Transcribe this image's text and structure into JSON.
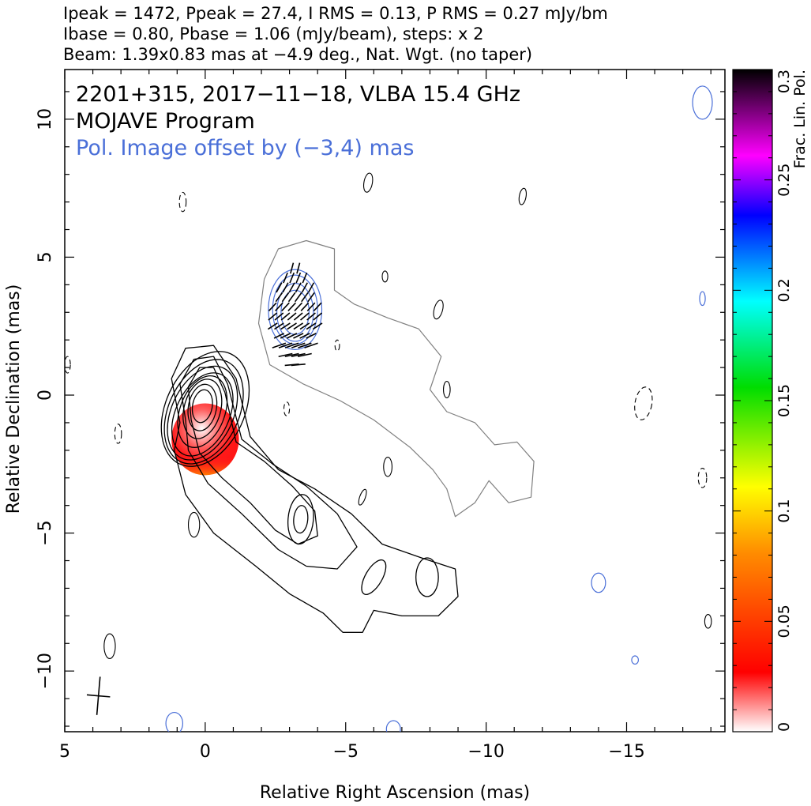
{
  "header": {
    "line1": "Ipeak = 1472, Ppeak = 27.4, I RMS = 0.13, P RMS = 0.27 mJy/bm",
    "line2": "Ibase = 0.80, Pbase = 1.06 (mJy/beam), steps: x 2",
    "line3": "Beam: 1.39x0.83 mas at −4.9 deg., Nat. Wgt. (no taper)"
  },
  "plot_text": {
    "source_line": "2201+315, 2017−11−18, VLBA 15.4 GHz",
    "program_line": "MOJAVE Program",
    "offset_note": "Pol. Image offset by (−3,4) mas"
  },
  "colors": {
    "total_intensity_contour": "#000000",
    "polarization_contour": "#4a6fd8",
    "offset_contour": "#808080",
    "evpa_vector": "#000000"
  },
  "chart_data": {
    "type": "contour_map",
    "xlabel": "Relative Right Ascension (mas)",
    "ylabel": "Relative Declination (mas)",
    "xlim": [
      5,
      -18.5
    ],
    "ylim": [
      -12.2,
      11.8
    ],
    "x_ticks": [
      5,
      0,
      -5,
      -10,
      -15
    ],
    "x_tick_labels": [
      "5",
      "0",
      "−5",
      "−10",
      "−15"
    ],
    "y_ticks": [
      10,
      5,
      0,
      -5,
      -10
    ],
    "y_tick_labels": [
      "10",
      "5",
      "0",
      "−5",
      "−10"
    ],
    "colorbar": {
      "label": "Frac. Lin. Pol.",
      "range": [
        0,
        0.3
      ],
      "ticks": [
        0,
        0.05,
        0.1,
        0.15,
        0.2,
        0.25,
        0.3
      ],
      "tick_labels": [
        "0",
        "0.05",
        "0.1",
        "0.15",
        "0.2",
        "0.25",
        "0.3"
      ],
      "gradient": [
        "#ffffff",
        "#ff0000",
        "#ff8c00",
        "#ffff00",
        "#00dd00",
        "#00ffff",
        "#0000ff",
        "#ff00ff",
        "#000000"
      ]
    },
    "beam": {
      "major_mas": 1.39,
      "minor_mas": 0.83,
      "pa_deg": -4.9,
      "center": [
        3.8,
        -10.9
      ]
    },
    "stokes_i_contours": [
      {
        "cx": 0.0,
        "cy": -0.5,
        "rx": 1.4,
        "ry": 2.2,
        "pa": 25
      },
      {
        "cx": 0.05,
        "cy": -0.6,
        "rx": 1.25,
        "ry": 2.0,
        "pa": 25
      },
      {
        "cx": 0.1,
        "cy": -0.65,
        "rx": 1.1,
        "ry": 1.8,
        "pa": 25
      },
      {
        "cx": 0.1,
        "cy": -0.7,
        "rx": 0.95,
        "ry": 1.6,
        "pa": 25
      },
      {
        "cx": 0.1,
        "cy": -0.6,
        "rx": 0.8,
        "ry": 1.35,
        "pa": 20
      },
      {
        "cx": 0.1,
        "cy": -0.5,
        "rx": 0.65,
        "ry": 1.1,
        "pa": 15
      },
      {
        "cx": 0.1,
        "cy": -0.45,
        "rx": 0.5,
        "ry": 0.85,
        "pa": 10
      },
      {
        "cx": 0.1,
        "cy": -0.4,
        "rx": 0.35,
        "ry": 0.6,
        "pa": 10
      },
      {
        "cx": -3.4,
        "cy": -4.5,
        "rx": 0.45,
        "ry": 0.9,
        "pa": 5
      },
      {
        "cx": -3.4,
        "cy": -4.5,
        "rx": 0.25,
        "ry": 0.5,
        "pa": 5
      },
      {
        "cx": -7.9,
        "cy": -6.6,
        "rx": 0.4,
        "ry": 0.7,
        "pa": 0
      },
      {
        "cx": -6.0,
        "cy": -6.6,
        "rx": 0.3,
        "ry": 0.7,
        "pa": 30
      }
    ],
    "stokes_i_outer_contour": [
      [
        0.9,
        -1.0
      ],
      [
        1.2,
        0.6
      ],
      [
        0.7,
        1.7
      ],
      [
        -0.3,
        1.8
      ],
      [
        -1.1,
        0.6
      ],
      [
        -1.6,
        -1.5
      ],
      [
        -2.6,
        -2.7
      ],
      [
        -3.9,
        -3.4
      ],
      [
        -5.2,
        -4.3
      ],
      [
        -6.3,
        -5.4
      ],
      [
        -7.7,
        -5.9
      ],
      [
        -8.9,
        -6.3
      ],
      [
        -9.0,
        -7.3
      ],
      [
        -8.3,
        -8.0
      ],
      [
        -7.0,
        -8.0
      ],
      [
        -6.0,
        -7.8
      ],
      [
        -5.6,
        -8.6
      ],
      [
        -4.9,
        -8.6
      ],
      [
        -4.2,
        -7.9
      ],
      [
        -3.0,
        -7.2
      ],
      [
        -1.8,
        -6.2
      ],
      [
        -0.3,
        -5.0
      ],
      [
        0.7,
        -3.6
      ],
      [
        1.1,
        -2.0
      ]
    ],
    "stokes_i_mid_contours": [
      [
        [
          0.7,
          -0.9
        ],
        [
          0.9,
          0.4
        ],
        [
          0.4,
          1.3
        ],
        [
          -0.3,
          1.4
        ],
        [
          -0.8,
          0.4
        ],
        [
          -1.3,
          -1.6
        ],
        [
          -2.4,
          -2.5
        ],
        [
          -3.6,
          -3.3
        ],
        [
          -4.7,
          -4.3
        ],
        [
          -5.4,
          -5.5
        ],
        [
          -4.7,
          -6.3
        ],
        [
          -3.6,
          -6.2
        ],
        [
          -2.6,
          -5.6
        ],
        [
          -1.3,
          -4.3
        ],
        [
          -0.1,
          -3.2
        ],
        [
          0.6,
          -2.0
        ]
      ],
      [
        [
          0.5,
          -0.9
        ],
        [
          0.6,
          0.3
        ],
        [
          0.2,
          1.0
        ],
        [
          -0.3,
          1.0
        ],
        [
          -0.7,
          0.1
        ],
        [
          -1.1,
          -1.7
        ],
        [
          -2.1,
          -2.4
        ],
        [
          -3.1,
          -3.3
        ],
        [
          -3.9,
          -4.2
        ],
        [
          -4.0,
          -5.1
        ],
        [
          -3.3,
          -5.4
        ],
        [
          -2.5,
          -4.9
        ],
        [
          -1.6,
          -3.9
        ],
        [
          -0.6,
          -3.0
        ],
        [
          0.2,
          -2.1
        ]
      ]
    ],
    "offset_stokes_i_contour": [
      [
        -2.1,
        4.2
      ],
      [
        -2.6,
        5.3
      ],
      [
        -3.6,
        5.6
      ],
      [
        -4.6,
        5.3
      ],
      [
        -4.6,
        3.8
      ],
      [
        -5.3,
        3.3
      ],
      [
        -6.5,
        2.8
      ],
      [
        -7.6,
        2.4
      ],
      [
        -8.4,
        1.4
      ],
      [
        -8.0,
        0.2
      ],
      [
        -8.6,
        -0.6
      ],
      [
        -9.6,
        -1.0
      ],
      [
        -10.3,
        -1.8
      ],
      [
        -11.1,
        -1.7
      ],
      [
        -11.7,
        -2.4
      ],
      [
        -11.6,
        -3.7
      ],
      [
        -10.8,
        -3.9
      ],
      [
        -10.1,
        -3.1
      ],
      [
        -9.6,
        -3.9
      ],
      [
        -8.9,
        -4.4
      ],
      [
        -8.6,
        -3.4
      ],
      [
        -8.1,
        -2.7
      ],
      [
        -7.3,
        -1.9
      ],
      [
        -6.0,
        -0.9
      ],
      [
        -4.8,
        -0.2
      ],
      [
        -3.5,
        0.4
      ],
      [
        -2.3,
        1.1
      ],
      [
        -1.9,
        2.6
      ]
    ],
    "polarization_contours": [
      {
        "cx": -3.2,
        "cy": 3.1,
        "rx": 0.95,
        "ry": 1.45,
        "pa": 0
      },
      {
        "cx": -3.2,
        "cy": 3.1,
        "rx": 0.8,
        "ry": 1.25,
        "pa": 0
      },
      {
        "cx": -3.2,
        "cy": 3.0,
        "rx": 0.65,
        "ry": 1.05,
        "pa": 0
      },
      {
        "cx": -3.2,
        "cy": 3.0,
        "rx": 0.5,
        "ry": 0.8,
        "pa": 0
      },
      {
        "cx": -17.7,
        "cy": 10.6,
        "rx": 0.35,
        "ry": 0.6,
        "pa": 0
      },
      {
        "cx": -14.0,
        "cy": -6.8,
        "rx": 0.25,
        "ry": 0.35,
        "pa": 0
      },
      {
        "cx": -17.7,
        "cy": 3.5,
        "rx": 0.1,
        "ry": 0.25,
        "pa": 0
      },
      {
        "cx": -15.3,
        "cy": -9.6,
        "rx": 0.12,
        "ry": 0.15,
        "pa": 0
      },
      {
        "cx": 1.1,
        "cy": -11.9,
        "rx": 0.3,
        "ry": 0.4,
        "pa": 0
      },
      {
        "cx": -6.7,
        "cy": -12.1,
        "rx": 0.25,
        "ry": 0.3,
        "pa": 0
      }
    ],
    "noise_contours": [
      {
        "cx": -5.8,
        "cy": 7.7,
        "rx": 0.15,
        "ry": 0.35,
        "pa": 10
      },
      {
        "cx": -11.3,
        "cy": 7.2,
        "rx": 0.12,
        "ry": 0.3,
        "pa": 10
      },
      {
        "cx": -8.3,
        "cy": 3.1,
        "rx": 0.15,
        "ry": 0.35,
        "pa": 15
      },
      {
        "cx": -6.4,
        "cy": 4.3,
        "rx": 0.1,
        "ry": 0.2,
        "pa": 0
      },
      {
        "cx": -8.6,
        "cy": 0.2,
        "rx": 0.12,
        "ry": 0.3,
        "pa": 0
      },
      {
        "cx": -5.6,
        "cy": -3.7,
        "rx": 0.1,
        "ry": 0.3,
        "pa": 20
      },
      {
        "cx": 3.4,
        "cy": -9.1,
        "rx": 0.2,
        "ry": 0.45,
        "pa": 0
      },
      {
        "cx": 0.4,
        "cy": -4.7,
        "rx": 0.2,
        "ry": 0.45,
        "pa": 0
      },
      {
        "cx": -17.9,
        "cy": -8.2,
        "rx": 0.12,
        "ry": 0.25,
        "pa": 0
      },
      {
        "cx": -6.5,
        "cy": -2.6,
        "rx": 0.15,
        "ry": 0.35,
        "pa": 0
      }
    ],
    "dashed_contours": [
      {
        "cx": -15.6,
        "cy": -0.3,
        "rx": 0.3,
        "ry": 0.6,
        "pa": 10
      },
      {
        "cx": -17.7,
        "cy": -3.0,
        "rx": 0.15,
        "ry": 0.35,
        "pa": 0
      },
      {
        "cx": 0.8,
        "cy": 7.0,
        "rx": 0.12,
        "ry": 0.35,
        "pa": 0
      },
      {
        "cx": 3.1,
        "cy": -1.4,
        "rx": 0.12,
        "ry": 0.35,
        "pa": 0
      },
      {
        "cx": -2.9,
        "cy": -0.5,
        "rx": 0.1,
        "ry": 0.25,
        "pa": 0
      },
      {
        "cx": 4.9,
        "cy": 1.1,
        "rx": 0.1,
        "ry": 0.3,
        "pa": 0
      },
      {
        "cx": -4.7,
        "cy": 1.8,
        "rx": 0.08,
        "ry": 0.2,
        "pa": 0
      }
    ],
    "fractional_pol_patch": {
      "cx": 0.0,
      "cy": -1.6,
      "rx": 1.2,
      "ry": 1.3,
      "top_value": 0.04,
      "bottom_value": 0.07
    },
    "evpa_vectors": {
      "region": {
        "x_from": -2.4,
        "x_to": -4.0,
        "y_from": 1.1,
        "y_to": 4.6
      },
      "angle_top_deg": 75,
      "angle_bottom_deg": 5
    }
  }
}
